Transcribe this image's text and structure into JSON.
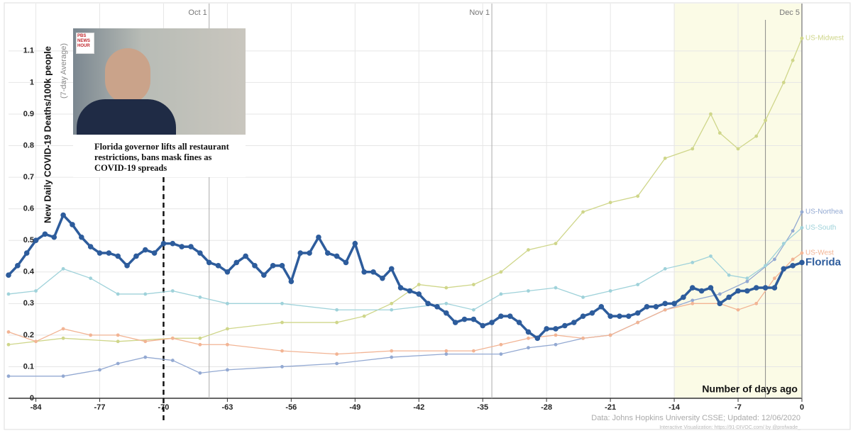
{
  "chart_data": {
    "type": "line",
    "y_label": "New Daily COVID-19 Deaths/100k people",
    "y_sublabel": "(7-day Average)",
    "x_label": "Number of days ago",
    "source": "Data: Johns Hopkins University CSSE; Updated: 12/06/2020",
    "credit": "Interactive Visualization: https://91-DIVOC.com/ by @profwade_",
    "xlim": [
      -87,
      0
    ],
    "ylim": [
      0,
      1.25
    ],
    "xticks": [
      -84,
      -77,
      -70,
      -63,
      -56,
      -49,
      -42,
      -35,
      -28,
      -21,
      -14,
      -7,
      0
    ],
    "yticks": [
      0,
      0.1,
      0.2,
      0.3,
      0.4,
      0.5,
      0.6,
      0.7,
      0.8,
      0.9,
      1,
      1.1
    ],
    "grid": true,
    "highlight": [
      -14,
      0
    ],
    "date_markers": [
      {
        "x": -65,
        "label": "Oct 1"
      },
      {
        "x": -34,
        "label": "Nov 1"
      },
      {
        "x": 0,
        "label": "Dec 5"
      }
    ],
    "extra_line": -4,
    "event_line": -70,
    "annotation": {
      "logo": "PBS NEWS HOUR",
      "headline": "Florida governor lifts all restaurant restrictions, bans mask fines as COVID-19 spreads"
    },
    "series": [
      {
        "name": "US-Midwest",
        "color": "#cfd68a",
        "x": [
          -87,
          -81,
          -75,
          -69,
          -66,
          -63,
          -57,
          -51,
          -48,
          -45,
          -42,
          -39,
          -36,
          -33,
          -30,
          -27,
          -24,
          -21,
          -18,
          -15,
          -12,
          -10,
          -9,
          -7,
          -5,
          -4,
          -2,
          -1,
          0
        ],
        "values": [
          0.17,
          0.19,
          0.18,
          0.19,
          0.19,
          0.22,
          0.24,
          0.24,
          0.26,
          0.3,
          0.36,
          0.35,
          0.36,
          0.4,
          0.47,
          0.49,
          0.59,
          0.62,
          0.64,
          0.76,
          0.79,
          0.9,
          0.84,
          0.79,
          0.83,
          0.88,
          1,
          1.07,
          1.14
        ]
      },
      {
        "name": "US-Northea",
        "color": "#93a9d2",
        "x": [
          -87,
          -81,
          -77,
          -75,
          -72,
          -69,
          -66,
          -63,
          -57,
          -51,
          -45,
          -39,
          -33,
          -30,
          -27,
          -24,
          -21,
          -18,
          -15,
          -12,
          -9,
          -6,
          -3,
          -1,
          0
        ],
        "values": [
          0.07,
          0.07,
          0.09,
          0.11,
          0.13,
          0.12,
          0.08,
          0.09,
          0.1,
          0.11,
          0.13,
          0.14,
          0.14,
          0.16,
          0.17,
          0.19,
          0.2,
          0.24,
          0.28,
          0.31,
          0.33,
          0.37,
          0.44,
          0.53,
          0.59
        ]
      },
      {
        "name": "US-South",
        "color": "#9fd2da",
        "x": [
          -87,
          -84,
          -81,
          -78,
          -75,
          -72,
          -69,
          -66,
          -63,
          -57,
          -51,
          -45,
          -39,
          -36,
          -33,
          -30,
          -27,
          -24,
          -21,
          -18,
          -15,
          -12,
          -10,
          -8,
          -6,
          -4,
          -2,
          0
        ],
        "values": [
          0.33,
          0.34,
          0.41,
          0.38,
          0.33,
          0.33,
          0.34,
          0.32,
          0.3,
          0.3,
          0.28,
          0.28,
          0.3,
          0.28,
          0.33,
          0.34,
          0.35,
          0.32,
          0.34,
          0.36,
          0.41,
          0.43,
          0.45,
          0.39,
          0.38,
          0.42,
          0.49,
          0.54
        ]
      },
      {
        "name": "US-West",
        "color": "#f2b494",
        "x": [
          -87,
          -84,
          -81,
          -78,
          -75,
          -72,
          -69,
          -66,
          -63,
          -57,
          -51,
          -45,
          -39,
          -36,
          -33,
          -30,
          -27,
          -24,
          -21,
          -18,
          -15,
          -12,
          -9,
          -7,
          -5,
          -3,
          -1,
          0
        ],
        "values": [
          0.21,
          0.18,
          0.22,
          0.2,
          0.2,
          0.18,
          0.19,
          0.17,
          0.17,
          0.15,
          0.14,
          0.15,
          0.15,
          0.15,
          0.17,
          0.19,
          0.2,
          0.19,
          0.2,
          0.24,
          0.28,
          0.3,
          0.3,
          0.28,
          0.3,
          0.38,
          0.44,
          0.46
        ]
      },
      {
        "name": "Florida",
        "color": "#2d5c9c",
        "bold": true,
        "x": [
          -87,
          -86,
          -85,
          -84,
          -83,
          -82,
          -81,
          -80,
          -79,
          -78,
          -77,
          -76,
          -75,
          -74,
          -73,
          -72,
          -71,
          -70,
          -69,
          -68,
          -67,
          -66,
          -65,
          -64,
          -63,
          -62,
          -61,
          -60,
          -59,
          -58,
          -57,
          -56,
          -55,
          -54,
          -53,
          -52,
          -51,
          -50,
          -49,
          -48,
          -47,
          -46,
          -45,
          -44,
          -43,
          -42,
          -41,
          -40,
          -39,
          -38,
          -37,
          -36,
          -35,
          -34,
          -33,
          -32,
          -31,
          -30,
          -29,
          -28,
          -27,
          -26,
          -25,
          -24,
          -23,
          -22,
          -21,
          -20,
          -19,
          -18,
          -17,
          -16,
          -15,
          -14,
          -13,
          -12,
          -11,
          -10,
          -9,
          -8,
          -7,
          -6,
          -5,
          -4,
          -3,
          -2,
          -1,
          0
        ],
        "values": [
          0.39,
          0.42,
          0.46,
          0.5,
          0.52,
          0.51,
          0.58,
          0.55,
          0.51,
          0.48,
          0.46,
          0.46,
          0.45,
          0.42,
          0.45,
          0.47,
          0.46,
          0.49,
          0.49,
          0.48,
          0.48,
          0.46,
          0.43,
          0.42,
          0.4,
          0.43,
          0.45,
          0.42,
          0.39,
          0.42,
          0.42,
          0.37,
          0.46,
          0.46,
          0.51,
          0.46,
          0.45,
          0.43,
          0.49,
          0.4,
          0.4,
          0.38,
          0.41,
          0.35,
          0.34,
          0.33,
          0.3,
          0.29,
          0.27,
          0.24,
          0.25,
          0.25,
          0.23,
          0.24,
          0.26,
          0.26,
          0.24,
          0.21,
          0.19,
          0.22,
          0.22,
          0.23,
          0.24,
          0.26,
          0.27,
          0.29,
          0.26,
          0.26,
          0.26,
          0.27,
          0.29,
          0.29,
          0.3,
          0.3,
          0.32,
          0.35,
          0.34,
          0.35,
          0.3,
          0.32,
          0.34,
          0.34,
          0.35,
          0.35,
          0.35,
          0.41,
          0.42,
          0.43
        ]
      }
    ]
  }
}
